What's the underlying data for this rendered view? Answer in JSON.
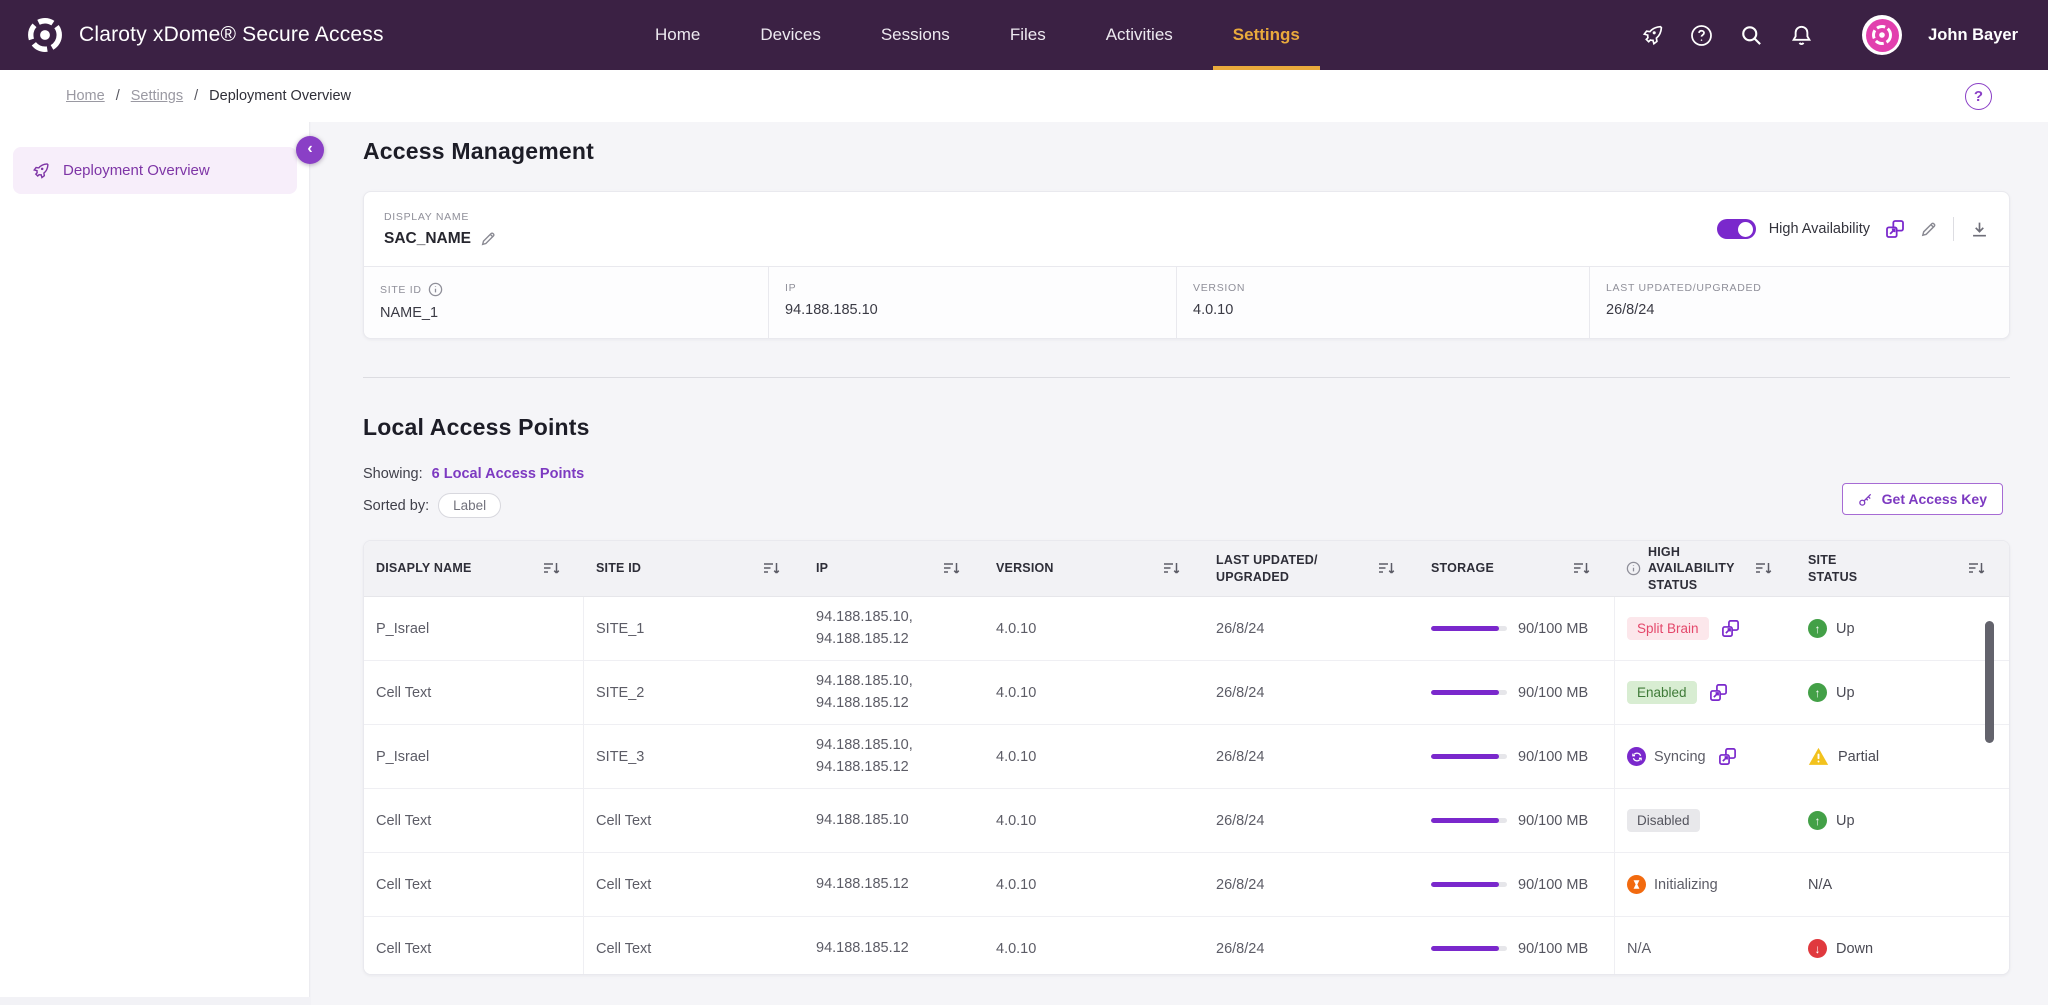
{
  "navbar": {
    "brand": "Claroty xDome® Secure Access",
    "items": [
      {
        "label": "Home",
        "active": false
      },
      {
        "label": "Devices",
        "active": false
      },
      {
        "label": "Sessions",
        "active": false
      },
      {
        "label": "Files",
        "active": false
      },
      {
        "label": "Activities",
        "active": false
      },
      {
        "label": "Settings",
        "active": true
      }
    ],
    "user": "John Bayer"
  },
  "breadcrumb": {
    "links": [
      "Home",
      "Settings"
    ],
    "current": "Deployment Overview"
  },
  "sidebar": {
    "items": [
      {
        "label": "Deployment Overview",
        "active": true
      }
    ]
  },
  "access_management": {
    "title": "Access Management",
    "display_name_label": "DISPLAY NAME",
    "display_name": "SAC_NAME",
    "ha_toggle_label": "High Availability",
    "ha_toggle_on": true,
    "fields": [
      {
        "label": "SITE ID",
        "info": true,
        "value": "NAME_1"
      },
      {
        "label": "IP",
        "info": false,
        "value": "94.188.185.10"
      },
      {
        "label": "VERSION",
        "info": false,
        "value": "4.0.10"
      },
      {
        "label": "LAST UPDATED/UPGRADED",
        "info": false,
        "value": "26/8/24"
      }
    ]
  },
  "local_access_points": {
    "title": "Local Access Points",
    "showing_label": "Showing:",
    "showing_link": "6 Local Access Points",
    "sorted_by_label": "Sorted by:",
    "sort_chip": "Label",
    "get_access_key": "Get Access Key"
  },
  "table": {
    "columns": [
      {
        "label": "DISAPLY NAME",
        "info": false
      },
      {
        "label": "SITE ID",
        "info": false
      },
      {
        "label": "IP",
        "info": false
      },
      {
        "label": "VERSION",
        "info": false
      },
      {
        "label": "LAST UPDATED/\nUPGRADED",
        "info": false
      },
      {
        "label": "STORAGE",
        "info": false
      },
      {
        "label": "HIGH\nAVAILABILITY\nSTATUS",
        "info": true
      },
      {
        "label": "SITE\nSTATUS",
        "info": false
      }
    ],
    "rows": [
      {
        "display_name": "P_Israel",
        "site_id": "SITE_1",
        "ip": [
          "94.188.185.10,",
          "94.188.185.12"
        ],
        "version": "4.0.10",
        "last_updated": "26/8/24",
        "storage": {
          "used": 90,
          "total": 100,
          "label": "90/100 MB"
        },
        "ha": {
          "kind": "badge",
          "variant": "danger",
          "label": "Split Brain",
          "link": true
        },
        "site": {
          "kind": "up",
          "label": "Up"
        }
      },
      {
        "display_name": "Cell Text",
        "site_id": "SITE_2",
        "ip": [
          "94.188.185.10,",
          "94.188.185.12"
        ],
        "version": "4.0.10",
        "last_updated": "26/8/24",
        "storage": {
          "used": 90,
          "total": 100,
          "label": "90/100 MB"
        },
        "ha": {
          "kind": "badge",
          "variant": "success",
          "label": "Enabled",
          "link": true
        },
        "site": {
          "kind": "up",
          "label": "Up"
        }
      },
      {
        "display_name": "P_Israel",
        "site_id": "SITE_3",
        "ip": [
          "94.188.185.10,",
          "94.188.185.12"
        ],
        "version": "4.0.10",
        "last_updated": "26/8/24",
        "storage": {
          "used": 90,
          "total": 100,
          "label": "90/100 MB"
        },
        "ha": {
          "kind": "icon",
          "variant": "sync",
          "label": "Syncing",
          "link": true
        },
        "site": {
          "kind": "partial",
          "label": "Partial"
        }
      },
      {
        "display_name": "Cell Text",
        "site_id": "Cell Text",
        "ip": [
          "94.188.185.10"
        ],
        "version": "4.0.10",
        "last_updated": "26/8/24",
        "storage": {
          "used": 90,
          "total": 100,
          "label": "90/100 MB"
        },
        "ha": {
          "kind": "badge",
          "variant": "neutral",
          "label": "Disabled",
          "link": false
        },
        "site": {
          "kind": "up",
          "label": "Up"
        }
      },
      {
        "display_name": "Cell Text",
        "site_id": "Cell Text",
        "ip": [
          "94.188.185.12"
        ],
        "version": "4.0.10",
        "last_updated": "26/8/24",
        "storage": {
          "used": 90,
          "total": 100,
          "label": "90/100 MB"
        },
        "ha": {
          "kind": "icon",
          "variant": "init",
          "label": "Initializing",
          "link": false
        },
        "site": {
          "kind": "text",
          "label": "N/A"
        }
      },
      {
        "display_name": "Cell Text",
        "site_id": "Cell Text",
        "ip": [
          "94.188.185.12"
        ],
        "version": "4.0.10",
        "last_updated": "26/8/24",
        "storage": {
          "used": 90,
          "total": 100,
          "label": "90/100 MB"
        },
        "ha": {
          "kind": "text",
          "variant": "",
          "label": "N/A",
          "link": false
        },
        "site": {
          "kind": "down",
          "label": "Down"
        }
      }
    ]
  },
  "icons": {
    "logo": "claroty-ring",
    "whats-new": "rocket",
    "help": "question-circle",
    "search": "magnifier",
    "notifications": "bell",
    "edit": "pencil",
    "ha-details": "overlapping-squares-arrow",
    "download": "arrow-down-tray",
    "sort": "lines-with-down-arrow",
    "info": "i-circle",
    "key": "key",
    "collapse": "chevron-left",
    "up": "up-arrow-circle",
    "down": "down-arrow-circle",
    "partial": "warning-triangle",
    "sync": "circular-arrows-circle",
    "init": "hourglass-circle"
  },
  "colors": {
    "navbar_bg": "#3B2144",
    "active_tab": "#E9AA3C",
    "accent": "#7A28CC",
    "link": "#7D3AC1",
    "up": "#43A047",
    "partial": "#F2C21D",
    "down": "#E0393E",
    "init": "#F26A0F",
    "pink": "#E23FAE"
  }
}
